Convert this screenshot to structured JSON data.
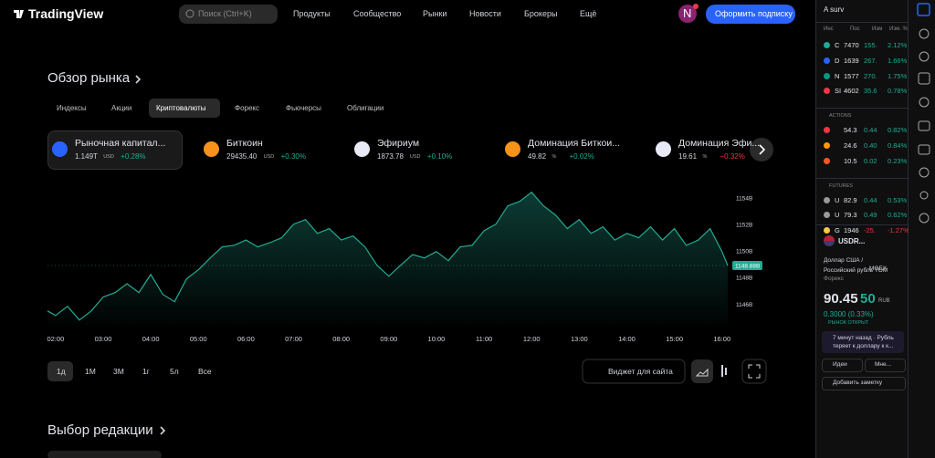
{
  "header": {
    "logo": "TradingView",
    "search": "Поиск (Ctrl+K)",
    "nav": [
      "Продукты",
      "Сообщество",
      "Рынки",
      "Новости",
      "Брокеры",
      "Ещё"
    ],
    "avatar": "N",
    "subscribe": "Оформить подписку"
  },
  "market": {
    "title": "Обзор рынка",
    "tabs": [
      "Индексы",
      "Акции",
      "Криптовалюты",
      "Форекс",
      "Фьючерсы",
      "Облигации"
    ],
    "active_tab": 2,
    "tickers": [
      {
        "name": "Рыночная капитал...",
        "value": "1.149T",
        "unit": "USD",
        "change": "+0.28%",
        "icon": "#2962ff"
      },
      {
        "name": "Биткоин",
        "value": "29435.40",
        "unit": "USD",
        "change": "+0.30%",
        "icon": "#f7931a"
      },
      {
        "name": "Эфириум",
        "value": "1873.78",
        "unit": "USD",
        "change": "+0.10%",
        "icon": "#e8eaf6"
      },
      {
        "name": "Доминация Биткои...",
        "value": "49.82",
        "unit": "%",
        "change": "+0.02%",
        "icon": "#f7931a"
      },
      {
        "name": "Доминация Эфи...",
        "value": "19.61",
        "unit": "%",
        "change": "−0.32%",
        "icon": "#e8eaf6"
      }
    ],
    "ranges": [
      "1д",
      "1М",
      "3М",
      "1г",
      "5л",
      "Все"
    ],
    "active_range": 0,
    "widget": "Виджет для сайта"
  },
  "chart_data": {
    "type": "area",
    "color": "#22ab94",
    "price_label": "1148.88B",
    "x": [
      1.83,
      2,
      2.25,
      2.5,
      2.75,
      3,
      3.25,
      3.5,
      3.75,
      4,
      4.25,
      4.5,
      4.75,
      5,
      5.25,
      5.5,
      5.75,
      6,
      6.25,
      6.5,
      6.75,
      7,
      7.25,
      7.5,
      7.75,
      8,
      8.25,
      8.5,
      8.75,
      9,
      9.25,
      9.5,
      9.75,
      10,
      10.25,
      10.5,
      10.75,
      11,
      11.25,
      11.5,
      11.75,
      12,
      12.25,
      12.5,
      12.75,
      13,
      13.25,
      13.5,
      13.75,
      14,
      14.25,
      14.5,
      14.75,
      15,
      15.25,
      15.5,
      15.75,
      16,
      16.12
    ],
    "values": [
      1145.45,
      1145.1,
      1145.8,
      1144.76,
      1145.45,
      1146.5,
      1146.83,
      1147.5,
      1146.83,
      1148.2,
      1146.7,
      1146.14,
      1147.86,
      1148.55,
      1149.45,
      1150.28,
      1150.4,
      1150.8,
      1150.28,
      1150.6,
      1150.97,
      1152.0,
      1152.34,
      1151.3,
      1151.66,
      1150.8,
      1151.1,
      1150.28,
      1148.9,
      1148.07,
      1148.9,
      1149.7,
      1149.45,
      1149.93,
      1149.24,
      1150.28,
      1150.4,
      1151.5,
      1152.0,
      1153.38,
      1153.72,
      1154.41,
      1153.38,
      1152.69,
      1151.66,
      1152.34,
      1151.3,
      1151.8,
      1150.8,
      1151.3,
      1150.97,
      1151.8,
      1150.8,
      1151.66,
      1150.4,
      1150.8,
      1151.66,
      1149.93,
      1148.88
    ],
    "xlim": [
      1.83,
      16.12
    ],
    "ylim": [
      1144.4,
      1154.8
    ],
    "xticks": [
      {
        "value": 2,
        "label": "02:00"
      },
      {
        "value": 3,
        "label": "03:00"
      },
      {
        "value": 4,
        "label": "04:00"
      },
      {
        "value": 5,
        "label": "05:00"
      },
      {
        "value": 6,
        "label": "06:00"
      },
      {
        "value": 7,
        "label": "07:00"
      },
      {
        "value": 8,
        "label": "08:00"
      },
      {
        "value": 9,
        "label": "09:00"
      },
      {
        "value": 10,
        "label": "10:00"
      },
      {
        "value": 11,
        "label": "11:00"
      },
      {
        "value": 12,
        "label": "12:00"
      },
      {
        "value": 13,
        "label": "13:00"
      },
      {
        "value": 14,
        "label": "14:00"
      },
      {
        "value": 15,
        "label": "15:00"
      },
      {
        "value": 16,
        "label": "16:00"
      }
    ],
    "yticks": [
      {
        "value": 1146,
        "label": "1146B"
      },
      {
        "value": 1148,
        "label": "1148B"
      },
      {
        "value": 1150,
        "label": "1150B"
      },
      {
        "value": 1152,
        "label": "1152B"
      },
      {
        "value": 1154,
        "label": "1154B"
      }
    ]
  },
  "editors": {
    "title": "Выбор редакции"
  },
  "watchlist": {
    "name": "A surv",
    "columns": [
      "Инс",
      "Пос",
      "Изм",
      "Изм. %"
    ],
    "sections": [
      {
        "title": null,
        "rows": [
          [
            "C",
            "7470",
            "155.",
            "2.12%"
          ],
          [
            "D",
            "1639",
            "267.",
            "1.66%"
          ],
          [
            "N",
            "1577",
            "270.",
            "1.75%"
          ],
          [
            "SI",
            "4602",
            "35.6",
            "0.78%"
          ]
        ]
      },
      {
        "title": "ACTIONS",
        "rows": [
          [
            "",
            "54.3",
            "0.44",
            "0.82%"
          ],
          [
            "",
            "24.6",
            "0.40",
            "0.84%"
          ],
          [
            "",
            "10.5",
            "0.02",
            "0.23%"
          ]
        ]
      },
      {
        "title": "FUTURES",
        "rows": [
          [
            "U",
            "82.9",
            "0.44",
            "0.53%"
          ],
          [
            "U",
            "79.3",
            "0.49",
            "0.62%"
          ],
          [
            "G",
            "1946",
            "-25.",
            "-1.27%"
          ]
        ]
      }
    ]
  },
  "details": {
    "symbol": "USDR...",
    "description": "Доллар США / Российский рубль TOM",
    "exchange": "MOEX",
    "category": "Форекс",
    "price": "90.45",
    "price_tail": "50",
    "currency": "RUB",
    "change": "0.3000 (0.33%)",
    "status": "РЫНОК ОТКРЫТ",
    "news": "7 минут назад · Рубль теряет к доллару к к...",
    "ideas": "Идеи",
    "mine": "Мне...",
    "add_note": "Добавить заметку"
  }
}
